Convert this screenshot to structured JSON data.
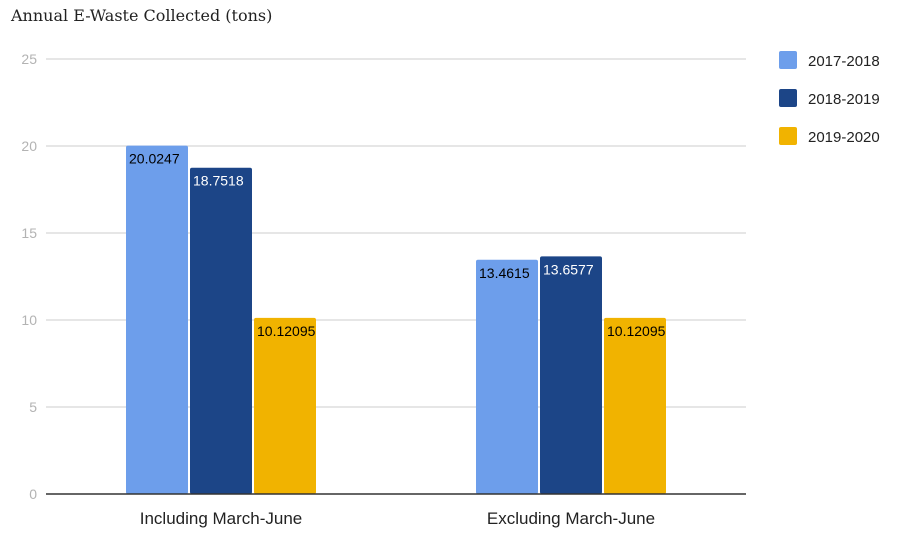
{
  "chart_data": {
    "type": "bar",
    "title": "Annual E-Waste Collected (tons)",
    "categories": [
      "Including March-June",
      "Excluding March-June"
    ],
    "series": [
      {
        "name": "2017-2018",
        "values": [
          20.0247,
          13.4615
        ],
        "labels": [
          "20.0247",
          "13.4615"
        ],
        "color": "#6d9eeb",
        "label_color": "#000000"
      },
      {
        "name": "2018-2019",
        "values": [
          18.7518,
          13.6577
        ],
        "labels": [
          "18.7518",
          "13.6577"
        ],
        "color": "#1c4587",
        "label_color": "#ffffff"
      },
      {
        "name": "2019-2020",
        "values": [
          10.12095,
          10.12095
        ],
        "labels": [
          "10.12095",
          "10.12095"
        ],
        "color": "#f1b300",
        "label_color": "#000000"
      }
    ],
    "ylim": [
      0,
      25
    ],
    "yticks": [
      "0",
      "5",
      "10",
      "15",
      "20",
      "25"
    ],
    "grid": true,
    "legend_position": "right"
  }
}
